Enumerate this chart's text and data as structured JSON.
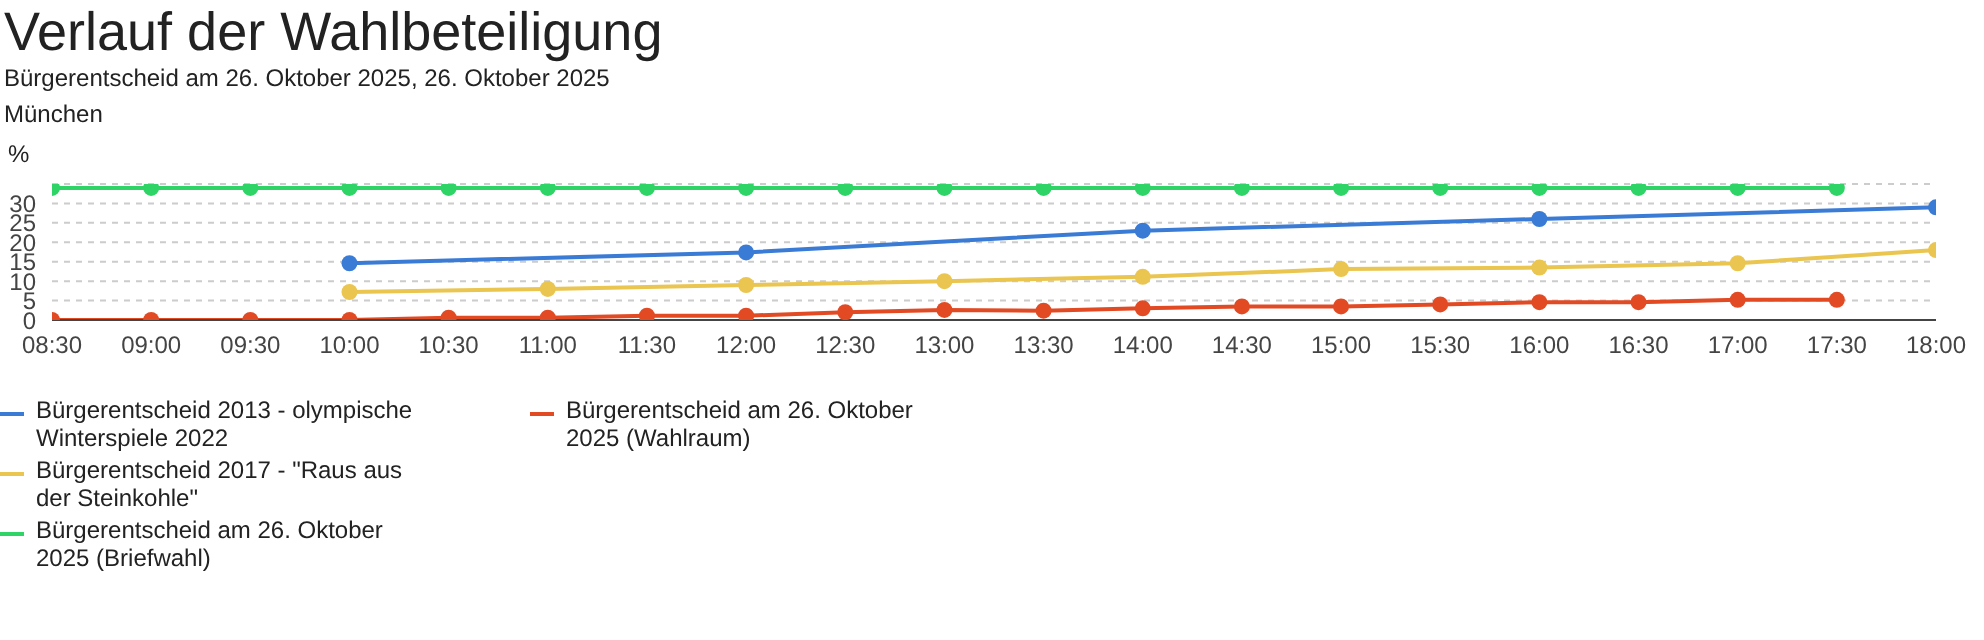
{
  "chart_data": {
    "type": "line",
    "title": "Verlauf der Wahlbeteiligung",
    "subtitle": "Bürgerentscheid am 26. Oktober 2025, 26. Oktober 2025",
    "annotations": [
      "München"
    ],
    "ylabel": "%",
    "xlim": [
      8.5,
      18
    ],
    "xticks": [
      {
        "value": 8.5,
        "label": "08:30"
      },
      {
        "value": 9,
        "label": "09:00"
      },
      {
        "value": 9.5,
        "label": "09:30"
      },
      {
        "value": 10,
        "label": "10:00"
      },
      {
        "value": 10.5,
        "label": "10:30"
      },
      {
        "value": 11,
        "label": "11:00"
      },
      {
        "value": 11.5,
        "label": "11:30"
      },
      {
        "value": 12,
        "label": "12:00"
      },
      {
        "value": 12.5,
        "label": "12:30"
      },
      {
        "value": 13,
        "label": "13:00"
      },
      {
        "value": 13.5,
        "label": "13:30"
      },
      {
        "value": 14,
        "label": "14:00"
      },
      {
        "value": 14.5,
        "label": "14:30"
      },
      {
        "value": 15,
        "label": "15:00"
      },
      {
        "value": 15.5,
        "label": "15:30"
      },
      {
        "value": 16,
        "label": "16:00"
      },
      {
        "value": 16.5,
        "label": "16:30"
      },
      {
        "value": 17,
        "label": "17:00"
      },
      {
        "value": 17.5,
        "label": "17:30"
      },
      {
        "value": 18,
        "label": "18:00"
      }
    ],
    "ylim": [
      0,
      35
    ],
    "yticks": [
      0,
      5,
      10,
      15,
      20,
      25,
      30
    ],
    "grid": "y",
    "legend": "bottom",
    "marker": "circle",
    "line_style": "solid",
    "series": [
      {
        "name": "Bürgerentscheid 2013 - olympische Winterspiele 2022",
        "color": "#3a7bd5",
        "x": [
          10,
          12,
          14,
          16,
          18
        ],
        "values": [
          14.6,
          17.4,
          23,
          26,
          29
        ]
      },
      {
        "name": "Bürgerentscheid 2017 - \"Raus aus der Steinkohle\"",
        "color": "#eac54f",
        "x": [
          10,
          11,
          12,
          13,
          14,
          15,
          16,
          17,
          18
        ],
        "values": [
          7.2,
          8,
          9,
          10,
          11.1,
          13.1,
          13.5,
          14.6,
          18
        ]
      },
      {
        "name": "Bürgerentscheid am 26. Oktober 2025 (Briefwahl)",
        "color": "#2fd466",
        "x": [
          8.5,
          9,
          9.5,
          10,
          10.5,
          11,
          11.5,
          12,
          12.5,
          13,
          13.5,
          14,
          14.5,
          15,
          15.5,
          16,
          16.5,
          17,
          17.5
        ],
        "values": [
          34,
          34,
          34,
          34,
          34,
          34,
          34,
          34,
          34,
          34,
          34,
          34,
          34,
          34,
          34,
          34,
          34,
          34,
          34
        ]
      },
      {
        "name": "Bürgerentscheid am 26. Oktober 2025 (Wahlraum)",
        "color": "#e24a24",
        "x": [
          8.5,
          9,
          9.5,
          10,
          10.5,
          11,
          11.5,
          12,
          12.5,
          13,
          13.5,
          14,
          14.5,
          15,
          15.5,
          16,
          16.5,
          17,
          17.5
        ],
        "values": [
          0,
          0,
          0,
          0,
          0.6,
          0.6,
          1.1,
          1.1,
          2,
          2.6,
          2.4,
          3,
          3.5,
          3.5,
          4,
          4.6,
          4.6,
          5.2,
          5.2
        ]
      }
    ]
  }
}
